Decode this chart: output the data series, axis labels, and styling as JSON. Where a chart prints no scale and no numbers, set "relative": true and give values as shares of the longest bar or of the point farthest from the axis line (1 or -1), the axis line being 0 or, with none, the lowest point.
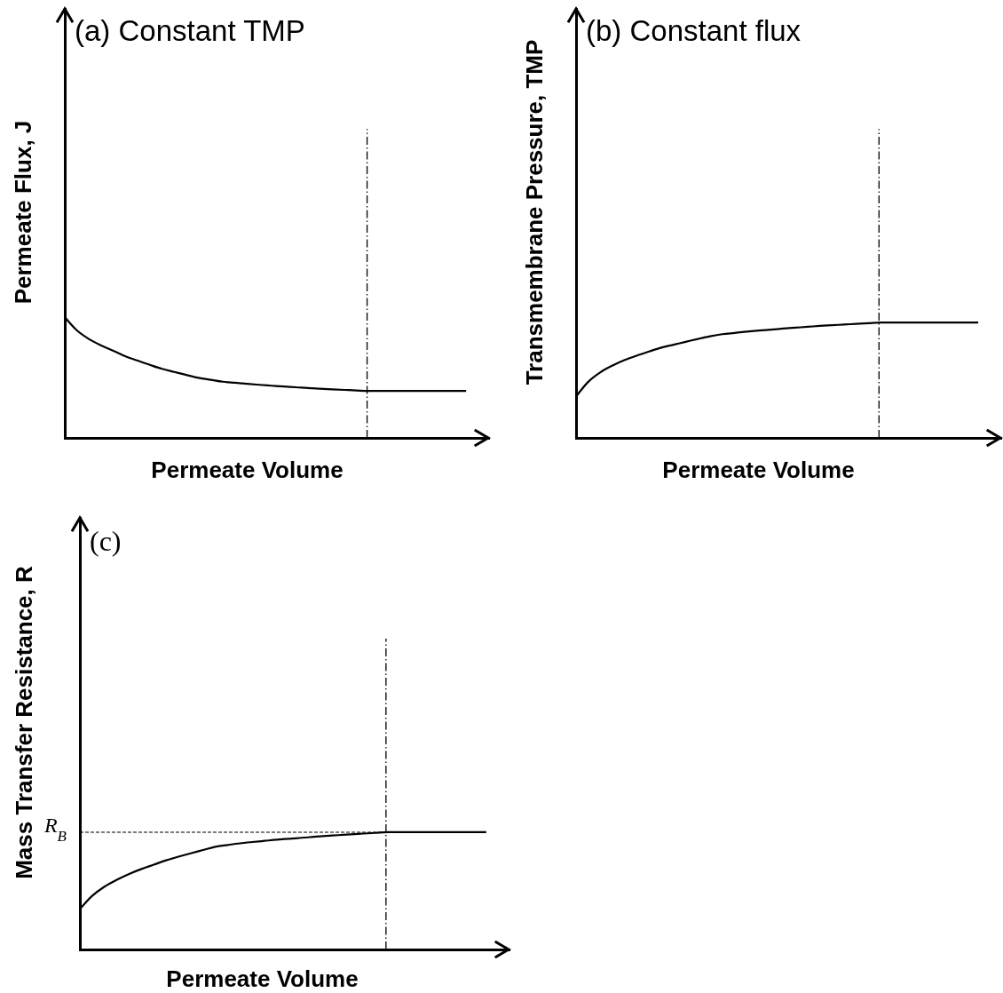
{
  "chart_data": [
    {
      "type": "line",
      "title": "(a) Constant TMP",
      "xlabel": "Permeate Volume",
      "ylabel": "Permeate Flux, J",
      "relative": true,
      "categories": [
        null,
        null,
        null,
        null,
        null,
        null,
        null,
        null,
        null,
        null,
        null,
        null,
        null,
        null,
        null,
        null,
        null,
        null,
        null,
        null,
        null,
        null,
        null,
        null,
        null,
        null,
        null,
        null,
        null,
        null,
        null,
        null,
        null,
        null
      ],
      "series": [
        {
          "color": "#000000",
          "values": [
            1,
            0.889,
            0.817,
            0.765,
            0.721,
            0.674,
            0.639,
            0.604,
            0.571,
            0.546,
            0.521,
            0.497,
            0.481,
            0.465,
            0.456,
            0.447,
            0.439,
            0.432,
            0.425,
            0.419,
            0.412,
            0.407,
            0.402,
            0.397,
            0.392,
            0.388,
            0.388,
            0.388,
            0.388,
            0.388,
            0.388,
            0.388,
            0.388,
            0.388
          ]
        }
      ]
    },
    {
      "type": "line",
      "title": "(b) Constant flux",
      "xlabel": "Permeate Volume",
      "ylabel": "Transmembrane Pressure, TMP",
      "relative": true,
      "categories": [
        null,
        null,
        null,
        null,
        null,
        null,
        null,
        null,
        null,
        null,
        null,
        null,
        null,
        null,
        null,
        null,
        null,
        null,
        null,
        null,
        null,
        null,
        null,
        null,
        null,
        null,
        null,
        null,
        null,
        null,
        null,
        null,
        null,
        null
      ],
      "series": [
        {
          "color": "#000000",
          "values": [
            0.358,
            0.486,
            0.569,
            0.628,
            0.676,
            0.714,
            0.749,
            0.783,
            0.808,
            0.833,
            0.858,
            0.881,
            0.899,
            0.91,
            0.921,
            0.931,
            0.939,
            0.948,
            0.956,
            0.963,
            0.971,
            0.977,
            0.983,
            0.989,
            0.995,
            1,
            1,
            1,
            1,
            1,
            1,
            1,
            1,
            1
          ]
        }
      ]
    },
    {
      "type": "line",
      "title": "(c)",
      "xlabel": "Permeate Volume",
      "ylabel": "Mass Transfer Resistance, R",
      "relative": true,
      "categories": [
        null,
        null,
        null,
        null,
        null,
        null,
        null,
        null,
        null,
        null,
        null,
        null,
        null,
        null,
        null,
        null,
        null,
        null,
        null,
        null,
        null,
        null,
        null,
        null,
        null,
        null,
        null,
        null,
        null,
        null,
        null,
        null,
        null,
        null
      ],
      "series": [
        {
          "color": "#000000",
          "values": [
            0.344,
            0.457,
            0.536,
            0.594,
            0.644,
            0.686,
            0.723,
            0.76,
            0.791,
            0.82,
            0.848,
            0.876,
            0.891,
            0.905,
            0.916,
            0.926,
            0.936,
            0.944,
            0.952,
            0.96,
            0.968,
            0.975,
            0.982,
            0.988,
            0.994,
            1,
            1,
            1,
            1,
            1,
            1,
            1,
            1,
            1
          ]
        }
      ],
      "ref_lines": [
        {
          "axis": "y",
          "value": 1,
          "label": "R$_{B}$",
          "line_style": "dashed",
          "color": "#000000"
        }
      ]
    }
  ]
}
